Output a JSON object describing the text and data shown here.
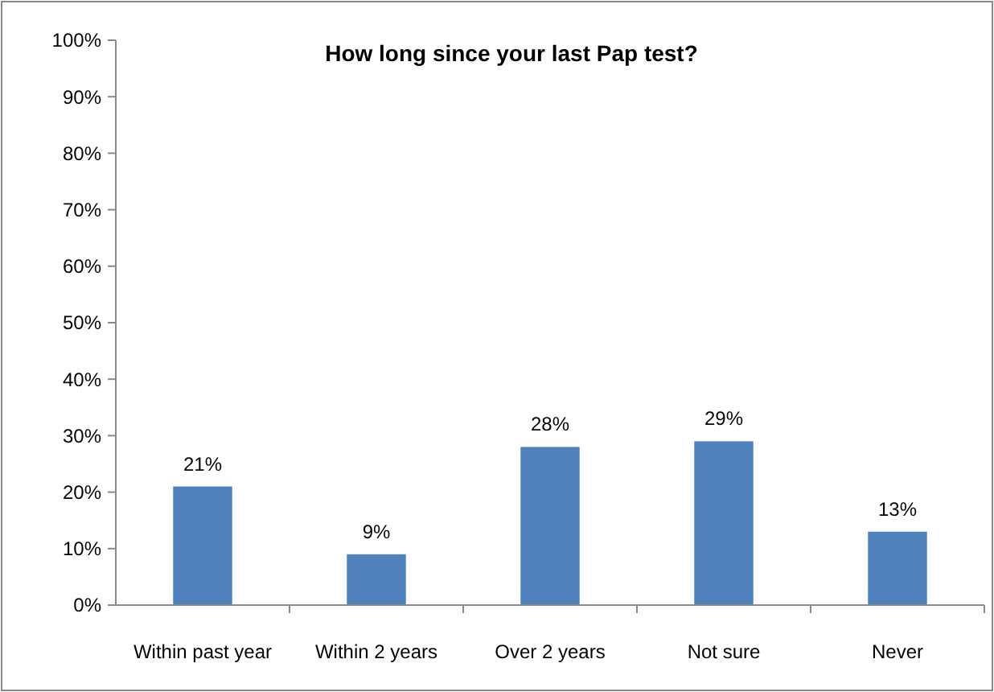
{
  "chart_data": {
    "type": "bar",
    "title": "How long since your last Pap test?",
    "categories": [
      "Within past year",
      "Within 2 years",
      "Over 2 years",
      "Not sure",
      "Never"
    ],
    "values": [
      21,
      9,
      28,
      29,
      13
    ],
    "value_labels": [
      "21%",
      "9%",
      "28%",
      "29%",
      "13%"
    ],
    "color": "#4f81bd",
    "ylim": [
      0,
      100
    ],
    "yticks": [
      {
        "value": 0,
        "label": "0%"
      },
      {
        "value": 10,
        "label": "10%"
      },
      {
        "value": 20,
        "label": "20%"
      },
      {
        "value": 30,
        "label": "30%"
      },
      {
        "value": 40,
        "label": "40%"
      },
      {
        "value": 50,
        "label": "50%"
      },
      {
        "value": 60,
        "label": "60%"
      },
      {
        "value": 70,
        "label": "70%"
      },
      {
        "value": 80,
        "label": "80%"
      },
      {
        "value": 90,
        "label": "90%"
      },
      {
        "value": 100,
        "label": "100%"
      }
    ],
    "grid": false
  }
}
